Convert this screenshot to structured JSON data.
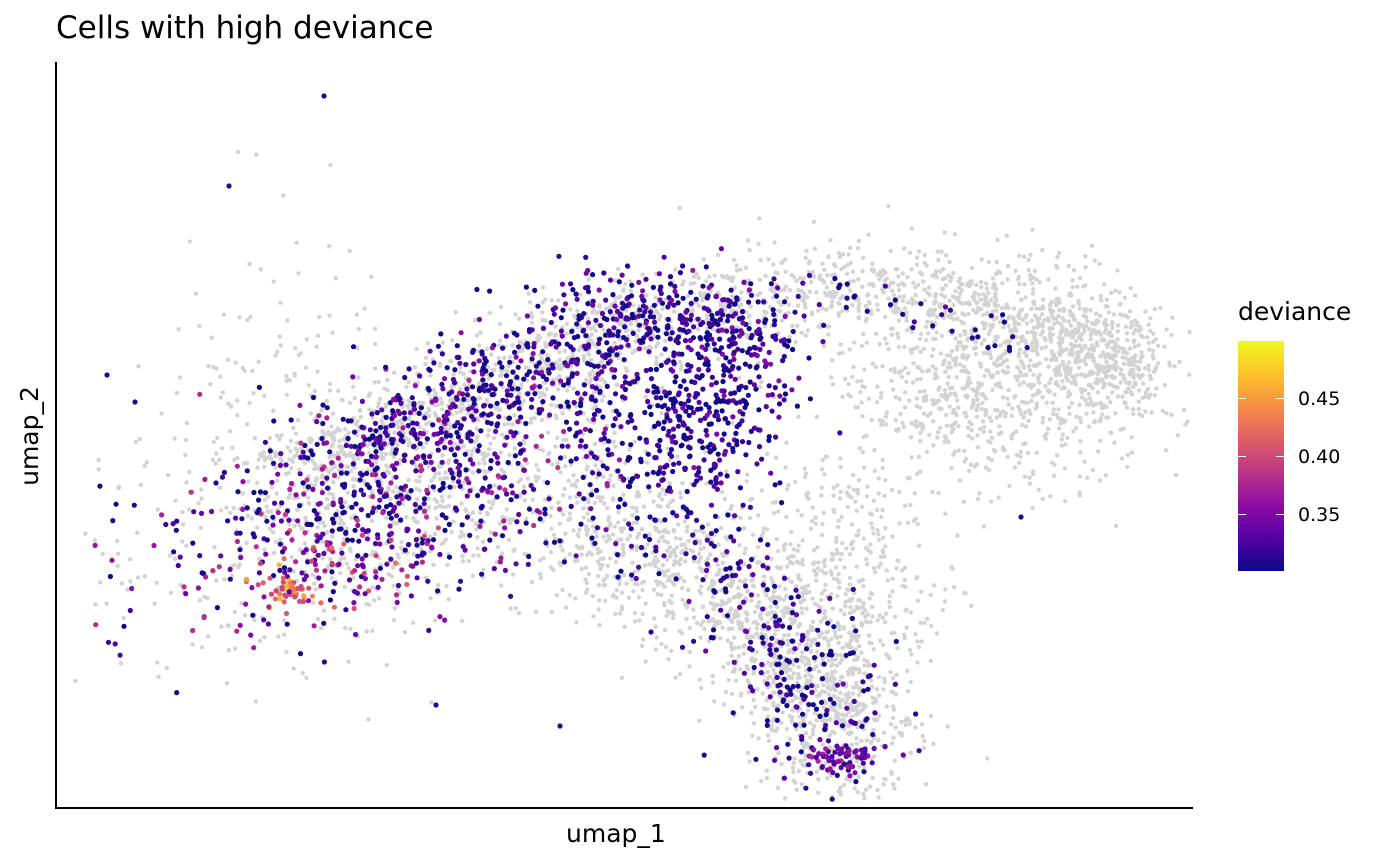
{
  "chart_data": {
    "type": "scatter",
    "title": "Cells with high deviance",
    "xlabel": "umap_1",
    "ylabel": "umap_2",
    "axes_ticks": false,
    "grid": false,
    "background_color": "#d3d3d3",
    "highlight_color_scale": {
      "name": "plasma",
      "legend_title": "deviance",
      "legend_position": "right",
      "tick_values": [
        0.35,
        0.4,
        0.45
      ],
      "tick_labels": [
        "0.35",
        "0.40",
        "0.45"
      ],
      "range": [
        0.3,
        0.5
      ],
      "colors": [
        "#0d0887",
        "#5302a3",
        "#8b0aa5",
        "#b83289",
        "#db5c68",
        "#f48849",
        "#febd2a",
        "#f0f921"
      ]
    }
  }
}
